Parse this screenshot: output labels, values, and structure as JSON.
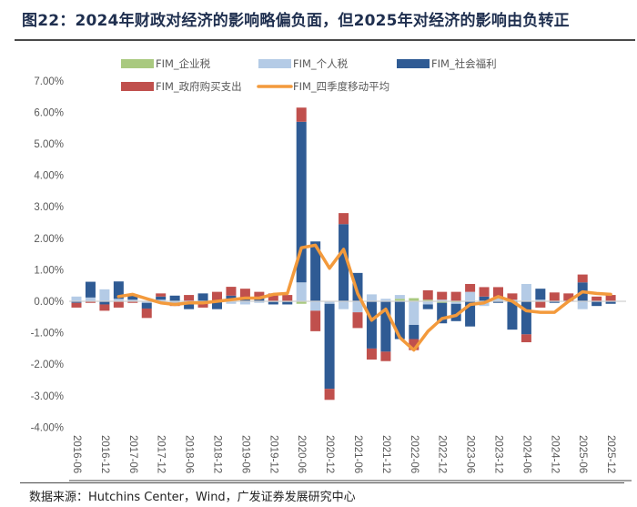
{
  "title": "图22：2024年财政对经济的影响略偏负面，但2025年对经济的影响由负转正",
  "source": "数据来源：Hutchins Center，Wind，广发证券发展研究中心",
  "chart_data": {
    "type": "bar",
    "stacked": true,
    "title": "图22：2024年财政对经济的影响略偏负面，但2025年对经济的影响由负转正",
    "xlabel": "",
    "ylabel": "",
    "ylim": [
      -4.0,
      7.0
    ],
    "ytick_step": 1.0,
    "ytick_format": "percent_2dp",
    "grid": false,
    "legend_position": "top",
    "x": [
      "2016-06",
      "2016-09",
      "2016-12",
      "2017-03",
      "2017-06",
      "2017-09",
      "2017-12",
      "2018-03",
      "2018-06",
      "2018-09",
      "2018-12",
      "2019-03",
      "2019-06",
      "2019-09",
      "2019-12",
      "2020-03",
      "2020-06",
      "2020-09",
      "2020-12",
      "2021-03",
      "2021-06",
      "2021-09",
      "2021-12",
      "2022-03",
      "2022-06",
      "2022-09",
      "2022-12",
      "2023-03",
      "2023-06",
      "2023-09",
      "2023-12",
      "2024-03",
      "2024-06",
      "2024-09",
      "2024-12",
      "2025-03",
      "2025-06",
      "2025-09",
      "2025-12"
    ],
    "xtick_labels": [
      "2016-06",
      "2016-12",
      "2017-06",
      "2017-12",
      "2018-06",
      "2018-12",
      "2019-06",
      "2019-12",
      "2020-06",
      "2020-12",
      "2021-06",
      "2021-12",
      "2022-06",
      "2022-12",
      "2023-06",
      "2023-12",
      "2024-06",
      "2024-12",
      "2025-06",
      "2025-12"
    ],
    "series": [
      {
        "name": "FIM_企业税",
        "kind": "bar",
        "color": "#a9c97f",
        "values": [
          0,
          0,
          0,
          0,
          0,
          0,
          0,
          0,
          0,
          0,
          0,
          0,
          0,
          0,
          -0.02,
          -0.02,
          -0.08,
          0,
          0,
          0,
          0,
          0,
          0,
          0.08,
          0.1,
          0.05,
          -0.05,
          -0.03,
          0,
          -0.05,
          0,
          0,
          0,
          0,
          0,
          0,
          0,
          0,
          0
        ]
      },
      {
        "name": "FIM_个人税",
        "kind": "bar",
        "color": "#b4cbe6",
        "values": [
          0.15,
          0.12,
          0.38,
          0.08,
          0.05,
          -0.05,
          0.05,
          -0.05,
          0,
          -0.05,
          0,
          -0.08,
          -0.1,
          -0.05,
          0,
          0,
          0.6,
          -0.3,
          -0.08,
          -0.25,
          -0.35,
          0.22,
          0.08,
          0.12,
          -0.75,
          -0.1,
          0.05,
          -0.05,
          0.3,
          -0.1,
          0.1,
          0.05,
          0.55,
          0.05,
          0,
          0,
          -0.25,
          0,
          0
        ]
      },
      {
        "name": "FIM_社会福利",
        "kind": "bar",
        "color": "#2f5b94",
        "values": [
          -0.05,
          0.5,
          -0.1,
          0.55,
          0.15,
          -0.18,
          0.1,
          0.18,
          -0.25,
          0.25,
          -0.25,
          0.18,
          0.08,
          0.1,
          -0.08,
          -0.08,
          5.1,
          1.9,
          -2.7,
          2.45,
          0.9,
          -1.5,
          -1.6,
          -1.2,
          -0.45,
          -0.15,
          -0.65,
          -0.55,
          -0.8,
          0.15,
          -0.05,
          -0.9,
          -1.05,
          0.35,
          -0.05,
          0,
          0.6,
          -0.15,
          -0.08
        ]
      },
      {
        "name": "FIM_政府购买支出",
        "kind": "bar",
        "color": "#c0504d",
        "values": [
          -0.15,
          -0.05,
          -0.2,
          -0.2,
          -0.05,
          -0.3,
          0.1,
          -0.1,
          0.2,
          -0.15,
          0.3,
          0.28,
          0.32,
          0.2,
          0.25,
          0.2,
          0.45,
          -0.65,
          -0.35,
          0.35,
          -0.5,
          -0.35,
          -0.3,
          0,
          -0.35,
          0.3,
          0.25,
          0.3,
          0.25,
          0.3,
          0.35,
          0.2,
          -0.25,
          -0.2,
          0.28,
          0.25,
          0.25,
          0.15,
          0.2
        ]
      },
      {
        "name": "FIM_四季度移动平均",
        "kind": "line",
        "color": "#f39a3c",
        "values": [
          null,
          null,
          null,
          0.15,
          0.22,
          0.08,
          -0.05,
          -0.1,
          -0.05,
          -0.05,
          0.0,
          0.05,
          0.1,
          0.1,
          0.22,
          0.25,
          1.7,
          1.78,
          1.05,
          1.65,
          0.25,
          -0.6,
          -0.25,
          -1.15,
          -1.55,
          -0.95,
          -0.55,
          -0.45,
          -0.1,
          -0.05,
          0.15,
          0,
          -0.3,
          -0.35,
          -0.35,
          0,
          0.3,
          0.25,
          0.22
        ]
      }
    ]
  }
}
